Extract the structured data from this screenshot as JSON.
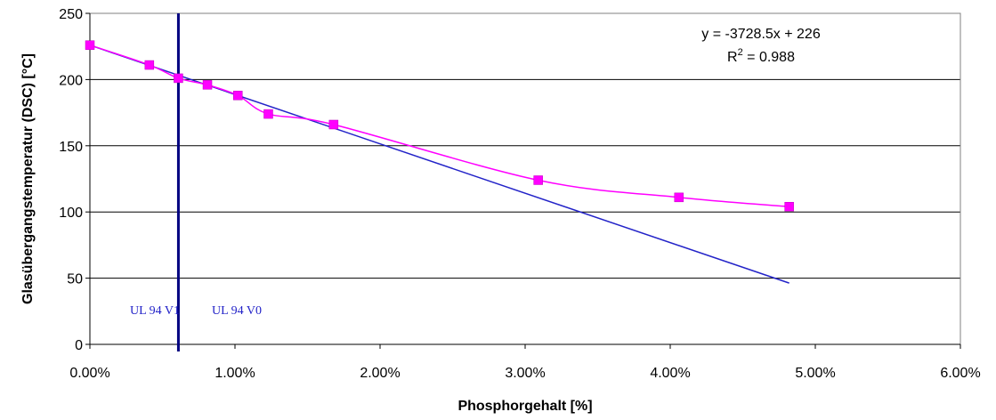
{
  "chart_data": {
    "type": "scatter",
    "title": "",
    "xlabel": "Phosphorgehalt [%]",
    "ylabel": "Glasübergangstemperatur (DSC) [°C]",
    "xlim": [
      0,
      0.06
    ],
    "ylim": [
      0,
      250
    ],
    "x_ticks": [
      0,
      0.01,
      0.02,
      0.03,
      0.04,
      0.05,
      0.06
    ],
    "x_tick_labels": [
      "0.00%",
      "1.00%",
      "2.00%",
      "3.00%",
      "4.00%",
      "5.00%",
      "6.00%"
    ],
    "y_ticks": [
      0,
      50,
      100,
      150,
      200,
      250
    ],
    "y_tick_labels": [
      "0",
      "50",
      "100",
      "150",
      "200",
      "250"
    ],
    "grid": "horizontal",
    "series": [
      {
        "marker": "square",
        "smooth_line": true,
        "color": "#ff00ff",
        "points": [
          {
            "x": 0.0,
            "y": 226
          },
          {
            "x": 0.0041,
            "y": 211
          },
          {
            "x": 0.0061,
            "y": 201
          },
          {
            "x": 0.0081,
            "y": 196
          },
          {
            "x": 0.0102,
            "y": 188
          },
          {
            "x": 0.0123,
            "y": 174
          },
          {
            "x": 0.0168,
            "y": 166
          },
          {
            "x": 0.0309,
            "y": 124
          },
          {
            "x": 0.0406,
            "y": 111
          },
          {
            "x": 0.0482,
            "y": 104
          }
        ]
      }
    ],
    "trendline": {
      "color": "#2323c8",
      "slope": -3728.5,
      "intercept": 226,
      "x_range": [
        0,
        0.0482
      ],
      "equation_label": "y = -3728.5x + 226",
      "r2_prefix": "R",
      "r2_exp": "2",
      "r2_value": " = 0.988"
    },
    "vertical_marker": {
      "x": 0.0061,
      "color": "#000080"
    },
    "zone_labels": {
      "left": "UL 94 V1",
      "right": "UL 94 V0"
    }
  }
}
